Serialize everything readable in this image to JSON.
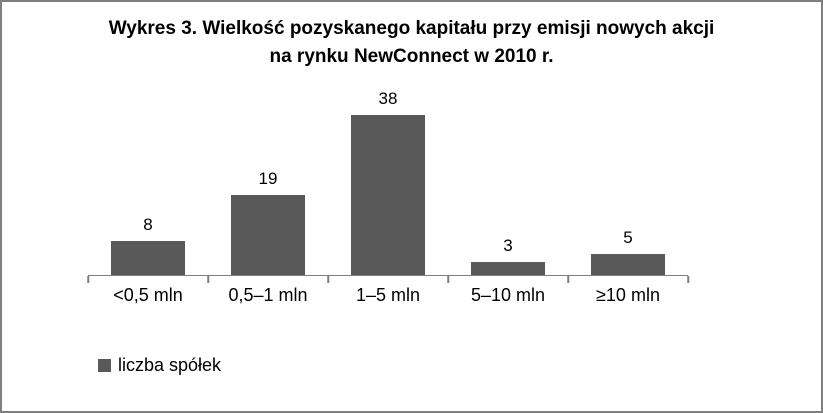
{
  "chart_data": {
    "type": "bar",
    "title": "Wykres 3. Wielkość pozyskanego kapitału przy emisji nowych akcji na rynku NewConnect w 2010 r.",
    "title_line1": "Wykres 3. Wielkość pozyskanego kapitału przy emisji nowych akcji",
    "title_line2": "na rynku NewConnect w 2010 r.",
    "categories": [
      "<0,5 mln",
      "0,5–1 mln",
      "1–5 mln",
      "5–10 mln",
      "≥10 mln"
    ],
    "values": [
      8,
      19,
      38,
      3,
      5
    ],
    "series_name": "liczba spółek",
    "legend_label": "liczba spółek",
    "legend_position": "bottom-left",
    "bar_color": "#595959",
    "axis_color": "#7f7f7f",
    "xlabel": "",
    "ylabel": "",
    "ylim": [
      0,
      40
    ],
    "grid": false
  }
}
